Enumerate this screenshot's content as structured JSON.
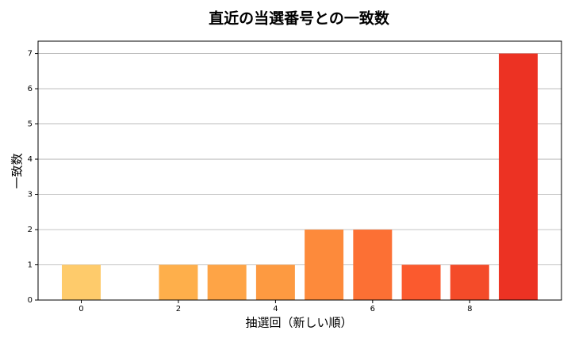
{
  "chart_data": {
    "type": "bar",
    "title": "直近の当選番号との一致数",
    "x_label": "抽選回（新しい順）",
    "y_label": "一致数",
    "x": [
      0,
      1,
      2,
      3,
      4,
      5,
      6,
      7,
      8,
      9
    ],
    "values": [
      1,
      0,
      1,
      1,
      1,
      2,
      2,
      1,
      1,
      7
    ],
    "colors": [
      "#fecb6b",
      "#feba56",
      "#feaf4b",
      "#fea446",
      "#fd9a41",
      "#fd8a3b",
      "#fc7034",
      "#fb5a2e",
      "#f44b29",
      "#ec3223"
    ],
    "xlim": [
      -0.89,
      9.89
    ],
    "xticks": [
      0,
      2,
      4,
      6,
      8
    ],
    "ylim": [
      0,
      7.35
    ],
    "yticks": [
      0,
      1,
      2,
      3,
      4,
      5,
      6,
      7
    ],
    "grid": true
  }
}
